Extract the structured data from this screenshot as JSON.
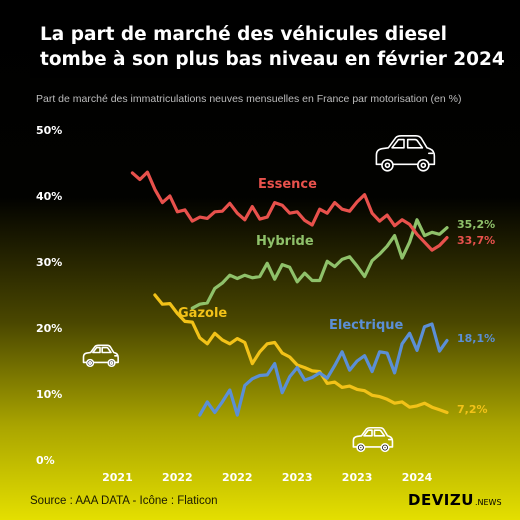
{
  "title": {
    "line1": "La part de marché des véhicules diesel",
    "line2": "tombe à son plus bas niveau en février 2024"
  },
  "subtitle": "Part de marché des immatriculations neuves mensuelles en France par motorisation (en %)",
  "footer": {
    "source": "Source : AAA DATA - Icône : Flaticon",
    "brand": "DEVIZU",
    "brand_suffix": ".NEWS"
  },
  "icons": [
    "car-icon",
    "car-icon",
    "car-icon"
  ],
  "colors": {
    "essence": "#e8514c",
    "hybride": "#8fc16a",
    "gazole": "#f2c218",
    "electrique": "#5b8fd6",
    "axis_text": "#ffffff"
  },
  "chart_data": {
    "type": "line",
    "y_ticks": [
      "50%",
      "40%",
      "30%",
      "20%",
      "10%",
      "0%"
    ],
    "x_ticks": [
      "2021",
      "2022",
      "2022",
      "2023",
      "2023",
      "2024"
    ],
    "ylim": [
      0,
      50
    ],
    "x_count": 50,
    "x_tick_index": [
      5,
      13,
      21,
      29,
      37,
      45
    ],
    "series": [
      {
        "key": "essence",
        "name": "Essence",
        "end_label": "33,7%",
        "values": [
          43.5,
          42.5,
          43.6,
          41.0,
          39.0,
          40.0,
          37.6,
          37.9,
          36.2,
          36.8,
          36.6,
          37.6,
          37.7,
          38.9,
          37.4,
          36.4,
          38.4,
          36.5,
          36.8,
          39.0,
          38.6,
          37.4,
          37.6,
          36.3,
          35.6,
          38.0,
          37.4,
          39.0,
          38.0,
          37.7,
          39.1,
          40.2,
          37.4,
          36.2,
          37.1,
          35.5,
          36.4,
          35.7,
          34.2,
          33.0,
          31.8,
          32.5,
          33.7
        ]
      },
      {
        "key": "hybride",
        "name": "Hybride",
        "end_label": "35,2%",
        "values": [
          23.0,
          23.6,
          23.8,
          26.0,
          26.8,
          28.0,
          27.5,
          28.0,
          27.6,
          27.8,
          29.8,
          27.4,
          29.6,
          29.2,
          27.0,
          28.3,
          27.2,
          27.2,
          30.1,
          29.3,
          30.4,
          30.8,
          29.4,
          27.8,
          30.2,
          31.2,
          32.4,
          34.0,
          30.6,
          33.0,
          36.4,
          34.0,
          34.5,
          34.2,
          35.2
        ]
      },
      {
        "key": "gazole",
        "name": "Gazole",
        "end_label": "7,2%",
        "values": [
          25.0,
          23.6,
          23.7,
          22.2,
          21.0,
          20.9,
          18.5,
          17.6,
          19.2,
          18.2,
          17.6,
          18.4,
          17.8,
          14.6,
          16.4,
          17.6,
          17.8,
          16.2,
          15.6,
          14.4,
          14.0,
          13.5,
          13.4,
          11.6,
          11.8,
          11.0,
          11.2,
          10.7,
          10.5,
          9.8,
          9.6,
          9.2,
          8.6,
          8.8,
          8.0,
          8.2,
          8.6,
          8.0,
          7.6,
          7.2
        ]
      },
      {
        "key": "electrique",
        "name": "Electrique",
        "end_label": "18,1%",
        "values": [
          6.8,
          8.8,
          7.2,
          8.8,
          10.6,
          6.8,
          11.3,
          12.3,
          12.8,
          12.9,
          14.6,
          10.2,
          12.6,
          14.0,
          12.1,
          12.5,
          13.2,
          12.4,
          14.3,
          16.4,
          13.6,
          15.0,
          15.8,
          13.4,
          16.4,
          16.2,
          13.2,
          17.6,
          19.2,
          16.6,
          20.2,
          20.6,
          16.5,
          18.1
        ]
      }
    ]
  }
}
